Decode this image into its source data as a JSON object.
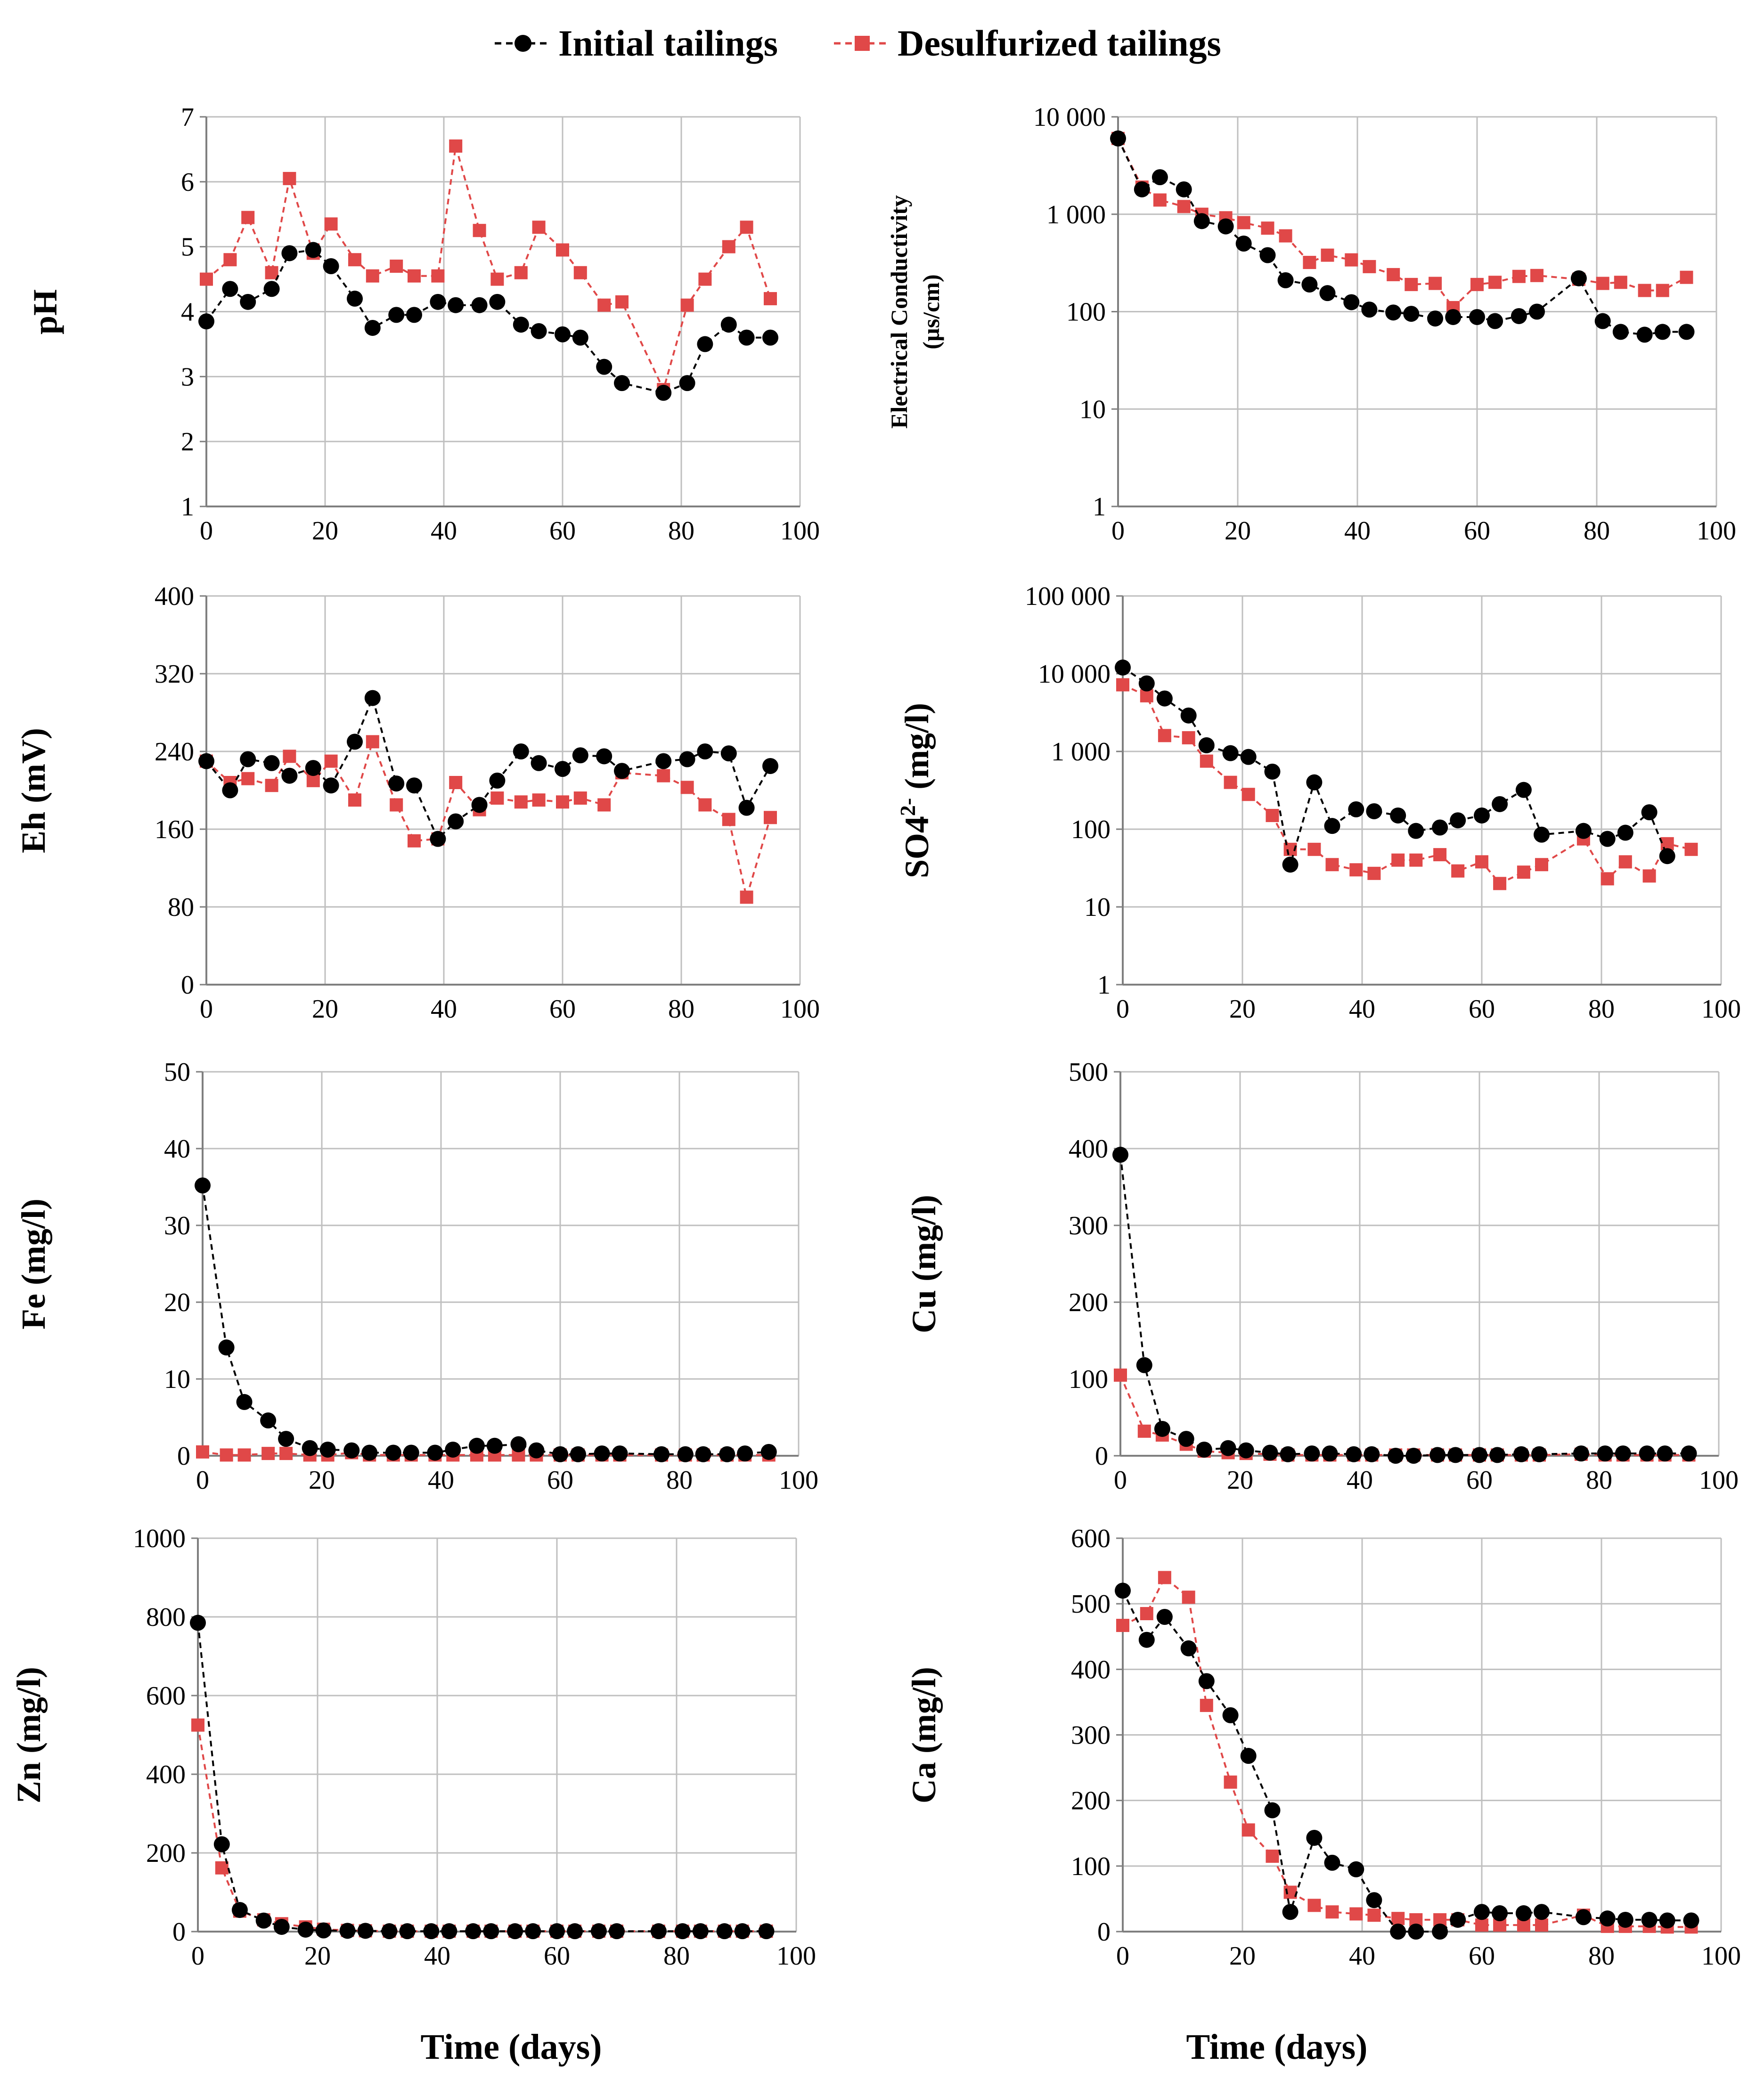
{
  "legend": {
    "initial": "Initial tailings",
    "desulfurized": "Desulfurized tailings"
  },
  "colors": {
    "initial": "#000000",
    "desulfurized": "#e04848",
    "grid": "#bfbfbf",
    "axis": "#7f7f7f"
  },
  "xaxis": {
    "label": "Time (days)",
    "ticks": [
      "0",
      "20",
      "40",
      "60",
      "80",
      "100"
    ]
  },
  "chart_data": [
    {
      "id": "ph",
      "type": "line",
      "scale": "linear",
      "ylabel": "pH",
      "xlim": [
        0,
        100
      ],
      "ylim": [
        1,
        7
      ],
      "yticks": [
        1,
        2,
        3,
        4,
        5,
        6,
        7
      ],
      "ytick_labels": [
        "1",
        "2",
        "3",
        "4",
        "5",
        "6",
        "7"
      ],
      "series": [
        {
          "name": "Initial tailings",
          "x": [
            0,
            4,
            7,
            11,
            14,
            18,
            21,
            25,
            28,
            32,
            35,
            39,
            42,
            46,
            49,
            53,
            56,
            60,
            63,
            67,
            70,
            77,
            81,
            84,
            88,
            91,
            95
          ],
          "y": [
            3.85,
            4.35,
            4.15,
            4.35,
            4.9,
            4.95,
            4.7,
            4.2,
            3.75,
            3.95,
            3.95,
            4.15,
            4.1,
            4.1,
            4.15,
            3.8,
            3.7,
            3.65,
            3.6,
            3.15,
            2.9,
            2.75,
            2.9,
            3.5,
            3.8,
            3.6,
            3.6
          ]
        },
        {
          "name": "Desulfurized tailings",
          "x": [
            0,
            4,
            7,
            11,
            14,
            18,
            21,
            25,
            28,
            32,
            35,
            39,
            42,
            46,
            49,
            53,
            56,
            60,
            63,
            67,
            70,
            77,
            81,
            84,
            88,
            91,
            95
          ],
          "y": [
            4.5,
            4.8,
            5.45,
            4.6,
            6.05,
            4.9,
            5.35,
            4.8,
            4.55,
            4.7,
            4.55,
            4.55,
            6.55,
            5.25,
            4.5,
            4.6,
            5.3,
            4.95,
            4.6,
            4.1,
            4.15,
            2.8,
            4.1,
            4.5,
            5.0,
            5.3,
            4.2
          ]
        }
      ]
    },
    {
      "id": "ec",
      "type": "line",
      "scale": "log",
      "ylabel": "Electrical Conductivity",
      "ylabel2": "(µs/cm)",
      "xlim": [
        0,
        100
      ],
      "ylim": [
        1,
        10000
      ],
      "yticks": [
        1,
        10,
        100,
        1000,
        10000
      ],
      "ytick_labels": [
        "1",
        "10",
        "100",
        "1 000",
        "10 000"
      ],
      "series": [
        {
          "name": "Initial tailings",
          "x": [
            0,
            4,
            7,
            11,
            14,
            18,
            21,
            25,
            28,
            32,
            35,
            39,
            42,
            46,
            49,
            53,
            56,
            60,
            63,
            67,
            70,
            77,
            81,
            84,
            88,
            91,
            95
          ],
          "y": [
            6000,
            1800,
            2400,
            1800,
            850,
            750,
            500,
            380,
            210,
            190,
            155,
            125,
            105,
            98,
            95,
            85,
            88,
            88,
            80,
            90,
            100,
            220,
            80,
            62,
            58,
            62,
            62
          ]
        },
        {
          "name": "Desulfurized tailings",
          "x": [
            0,
            4,
            7,
            11,
            14,
            18,
            21,
            25,
            28,
            32,
            35,
            39,
            42,
            46,
            49,
            53,
            56,
            60,
            63,
            67,
            70,
            77,
            81,
            84,
            88,
            91,
            95
          ],
          "y": [
            6000,
            1900,
            1400,
            1200,
            1000,
            920,
            820,
            720,
            600,
            320,
            380,
            340,
            290,
            240,
            190,
            195,
            110,
            190,
            200,
            230,
            235,
            215,
            195,
            200,
            165,
            165,
            225
          ]
        }
      ]
    },
    {
      "id": "eh",
      "type": "line",
      "scale": "linear",
      "ylabel": "Eh (mV)",
      "xlim": [
        0,
        100
      ],
      "ylim": [
        0,
        400
      ],
      "yticks": [
        0,
        80,
        160,
        240,
        320,
        400
      ],
      "ytick_labels": [
        "0",
        "80",
        "160",
        "240",
        "320",
        "400"
      ],
      "series": [
        {
          "name": "Initial tailings",
          "x": [
            0,
            4,
            7,
            11,
            14,
            18,
            21,
            25,
            28,
            32,
            35,
            39,
            42,
            46,
            49,
            53,
            56,
            60,
            63,
            67,
            70,
            77,
            81,
            84,
            88,
            91,
            95
          ],
          "y": [
            230,
            200,
            232,
            228,
            215,
            223,
            205,
            250,
            295,
            207,
            205,
            150,
            168,
            185,
            210,
            240,
            228,
            222,
            236,
            235,
            220,
            230,
            232,
            240,
            238,
            182,
            225
          ]
        },
        {
          "name": "Desulfurized tailings",
          "x": [
            0,
            4,
            7,
            11,
            14,
            18,
            21,
            25,
            28,
            32,
            35,
            39,
            42,
            46,
            49,
            53,
            56,
            60,
            63,
            67,
            70,
            77,
            81,
            84,
            88,
            91,
            95
          ],
          "y": [
            230,
            208,
            212,
            205,
            235,
            210,
            230,
            190,
            250,
            185,
            148,
            150,
            208,
            180,
            192,
            188,
            190,
            188,
            192,
            185,
            218,
            215,
            203,
            185,
            170,
            90,
            172
          ]
        }
      ]
    },
    {
      "id": "so4",
      "type": "line",
      "scale": "log",
      "ylabel": "SO4",
      "ylabel_sup": "2-",
      "ylabel_tail": " (mg/l)",
      "xlim": [
        0,
        100
      ],
      "ylim": [
        1,
        100000
      ],
      "yticks": [
        1,
        10,
        100,
        1000,
        10000,
        100000
      ],
      "ytick_labels": [
        "1",
        "10",
        "100",
        "1 000",
        "10 000",
        "100 000"
      ],
      "series": [
        {
          "name": "Initial tailings",
          "x": [
            0,
            4,
            7,
            11,
            14,
            18,
            21,
            25,
            28,
            32,
            35,
            39,
            42,
            46,
            49,
            53,
            56,
            60,
            63,
            67,
            70,
            77,
            81,
            84,
            88,
            91
          ],
          "y": [
            12000,
            7500,
            4800,
            2900,
            1200,
            950,
            850,
            550,
            35,
            400,
            110,
            180,
            170,
            150,
            95,
            105,
            130,
            150,
            210,
            320,
            85,
            95,
            75,
            90,
            165,
            45
          ]
        },
        {
          "name": "Desulfurized tailings",
          "x": [
            0,
            4,
            7,
            11,
            14,
            18,
            21,
            25,
            28,
            32,
            35,
            39,
            42,
            46,
            49,
            53,
            56,
            60,
            63,
            67,
            70,
            77,
            81,
            84,
            88,
            91,
            95
          ],
          "y": [
            7200,
            5200,
            1600,
            1500,
            750,
            400,
            280,
            150,
            55,
            55,
            35,
            30,
            27,
            40,
            40,
            47,
            29,
            38,
            20,
            28,
            35,
            75,
            23,
            38,
            25,
            65,
            55
          ]
        }
      ]
    },
    {
      "id": "fe",
      "type": "line",
      "scale": "linear",
      "ylabel": "Fe (mg/l)",
      "xlim": [
        0,
        100
      ],
      "ylim": [
        0,
        50
      ],
      "yticks": [
        0,
        10,
        20,
        30,
        40,
        50
      ],
      "ytick_labels": [
        "0",
        "10",
        "20",
        "30",
        "40",
        "50"
      ],
      "series": [
        {
          "name": "Initial tailings",
          "x": [
            0,
            4,
            7,
            11,
            14,
            18,
            21,
            25,
            28,
            32,
            35,
            39,
            42,
            46,
            49,
            53,
            56,
            60,
            63,
            67,
            70,
            77,
            81,
            84,
            88,
            91,
            95
          ],
          "y": [
            35.2,
            14.1,
            7.0,
            4.6,
            2.2,
            1.0,
            0.8,
            0.7,
            0.4,
            0.4,
            0.4,
            0.4,
            0.8,
            1.3,
            1.3,
            1.5,
            0.7,
            0.2,
            0.2,
            0.3,
            0.3,
            0.2,
            0.2,
            0.2,
            0.2,
            0.3,
            0.5
          ]
        },
        {
          "name": "Desulfurized tailings",
          "x": [
            0,
            4,
            7,
            11,
            14,
            18,
            21,
            25,
            28,
            32,
            35,
            39,
            42,
            46,
            49,
            53,
            56,
            60,
            63,
            67,
            70,
            77,
            81,
            84,
            88,
            91,
            95
          ],
          "y": [
            0.5,
            0.1,
            0.1,
            0.3,
            0.3,
            0.1,
            0.1,
            0.4,
            0.1,
            0.1,
            0.1,
            0.1,
            0.1,
            0.1,
            0.1,
            0.1,
            0.1,
            0.1,
            0.1,
            0.1,
            0.1,
            0.1,
            0.1,
            0.1,
            0.1,
            0.1,
            0.1
          ]
        }
      ]
    },
    {
      "id": "cu",
      "type": "line",
      "scale": "linear",
      "ylabel": "Cu (mg/l)",
      "xlim": [
        0,
        100
      ],
      "ylim": [
        0,
        500
      ],
      "yticks": [
        0,
        100,
        200,
        300,
        400,
        500
      ],
      "ytick_labels": [
        "0",
        "100",
        "200",
        "300",
        "400",
        "500"
      ],
      "series": [
        {
          "name": "Initial tailings",
          "x": [
            0,
            4,
            7,
            11,
            14,
            18,
            21,
            25,
            28,
            32,
            35,
            39,
            42,
            46,
            49,
            53,
            56,
            60,
            63,
            67,
            70,
            77,
            81,
            84,
            88,
            91,
            95
          ],
          "y": [
            392,
            118,
            35,
            22,
            8,
            10,
            7,
            4,
            2,
            3,
            3,
            2,
            2,
            0,
            0,
            1,
            1,
            1,
            1,
            2,
            2,
            3,
            3,
            3,
            3,
            3,
            3
          ]
        },
        {
          "name": "Desulfurized tailings",
          "x": [
            0,
            4,
            7,
            11,
            14,
            18,
            21,
            25,
            28,
            32,
            35,
            39,
            42,
            46,
            49,
            53,
            56,
            60,
            63,
            67,
            70,
            77,
            81,
            84,
            88,
            91,
            95
          ],
          "y": [
            105,
            32,
            27,
            15,
            6,
            4,
            3,
            2,
            1,
            1,
            1,
            1,
            1,
            1,
            1,
            1,
            1,
            1,
            1,
            1,
            1,
            2,
            1,
            1,
            1,
            1,
            1
          ]
        }
      ]
    },
    {
      "id": "zn",
      "type": "line",
      "scale": "linear",
      "ylabel": "Zn (mg/l)",
      "xlim": [
        0,
        100
      ],
      "ylim": [
        0,
        1000
      ],
      "yticks": [
        0,
        200,
        400,
        600,
        800,
        1000
      ],
      "ytick_labels": [
        "0",
        "200",
        "400",
        "600",
        "800",
        "1000"
      ],
      "series": [
        {
          "name": "Initial tailings",
          "x": [
            0,
            4,
            7,
            11,
            14,
            18,
            21,
            25,
            28,
            32,
            35,
            39,
            42,
            46,
            49,
            53,
            56,
            60,
            63,
            67,
            70,
            77,
            81,
            84,
            88,
            91,
            95
          ],
          "y": [
            785,
            222,
            55,
            28,
            12,
            5,
            3,
            2,
            2,
            1,
            1,
            1,
            1,
            1,
            1,
            1,
            1,
            1,
            1,
            1,
            1,
            1,
            1,
            1,
            1,
            1,
            1
          ]
        },
        {
          "name": "Desulfurized tailings",
          "x": [
            0,
            4,
            7,
            11,
            14,
            18,
            21,
            25,
            28,
            32,
            35,
            39,
            42,
            46,
            49,
            53,
            56,
            60,
            63,
            67,
            70,
            77,
            81,
            84,
            88,
            91,
            95
          ],
          "y": [
            525,
            162,
            52,
            30,
            20,
            12,
            6,
            3,
            2,
            1,
            1,
            1,
            1,
            1,
            1,
            1,
            1,
            1,
            1,
            1,
            1,
            1,
            1,
            1,
            1,
            1,
            1
          ]
        }
      ]
    },
    {
      "id": "ca",
      "type": "line",
      "scale": "linear",
      "ylabel": "Ca (mg/l)",
      "xlim": [
        0,
        100
      ],
      "ylim": [
        0,
        600
      ],
      "yticks": [
        0,
        100,
        200,
        300,
        400,
        500,
        600
      ],
      "ytick_labels": [
        "0",
        "100",
        "200",
        "300",
        "400",
        "500",
        "600"
      ],
      "series": [
        {
          "name": "Initial tailings",
          "x": [
            0,
            4,
            7,
            11,
            14,
            18,
            21,
            25,
            28,
            32,
            35,
            39,
            42,
            46,
            49,
            53,
            56,
            60,
            63,
            67,
            70,
            77,
            81,
            84,
            88,
            91,
            95
          ],
          "y": [
            520,
            445,
            480,
            432,
            382,
            330,
            268,
            185,
            30,
            143,
            105,
            95,
            48,
            0,
            0,
            0,
            18,
            30,
            28,
            28,
            30,
            22,
            20,
            18,
            18,
            17,
            17
          ]
        },
        {
          "name": "Desulfurized tailings",
          "x": [
            0,
            4,
            7,
            11,
            14,
            18,
            21,
            25,
            28,
            32,
            35,
            39,
            42,
            46,
            49,
            53,
            56,
            60,
            63,
            67,
            70,
            77,
            81,
            84,
            88,
            91,
            95
          ],
          "y": [
            467,
            485,
            540,
            510,
            345,
            228,
            155,
            115,
            60,
            40,
            30,
            27,
            25,
            20,
            18,
            18,
            18,
            10,
            10,
            10,
            10,
            25,
            8,
            8,
            8,
            7,
            7
          ]
        }
      ]
    }
  ]
}
